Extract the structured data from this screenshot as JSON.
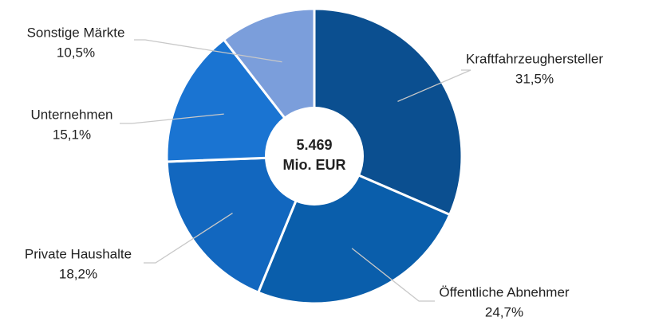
{
  "chart_data": {
    "type": "donut",
    "categories": [
      "Kraftfahrzeughersteller",
      "Öffentliche Abnehmer",
      "Private Haushalte",
      "Unternehmen",
      "Sonstige Märkte"
    ],
    "values": [
      31.5,
      24.7,
      18.2,
      15.1,
      10.5
    ],
    "value_labels": [
      "31,5%",
      "24,7%",
      "18,2%",
      "15,1%",
      "10,5%"
    ],
    "colors": [
      "#0b4f90",
      "#0a5eab",
      "#1267bf",
      "#1a74d2",
      "#7b9edb"
    ],
    "center_label": [
      "5.469",
      "Mio. EUR"
    ]
  }
}
